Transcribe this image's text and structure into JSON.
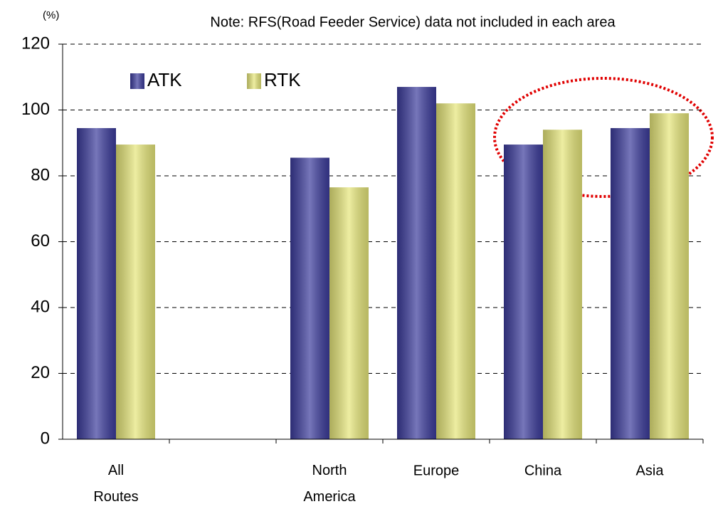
{
  "chart_data": {
    "type": "bar",
    "unit_label": "(%)",
    "note": "Note: RFS(Road Feeder Service) data not included in each area",
    "categories": [
      "All Routes",
      null,
      "North America",
      "Europe",
      "China",
      "Asia"
    ],
    "series": [
      {
        "name": "ATK",
        "color": "#3c3c9c",
        "values": [
          94.5,
          null,
          85.5,
          107,
          89.5,
          94.5
        ]
      },
      {
        "name": "RTK",
        "color": "#e6e67a",
        "values": [
          89.5,
          null,
          76.5,
          102,
          94,
          99
        ]
      }
    ],
    "ylim": [
      0,
      120
    ],
    "yticks": [
      0,
      20,
      40,
      60,
      80,
      100,
      120
    ],
    "grid": true,
    "legend": "top-left"
  }
}
